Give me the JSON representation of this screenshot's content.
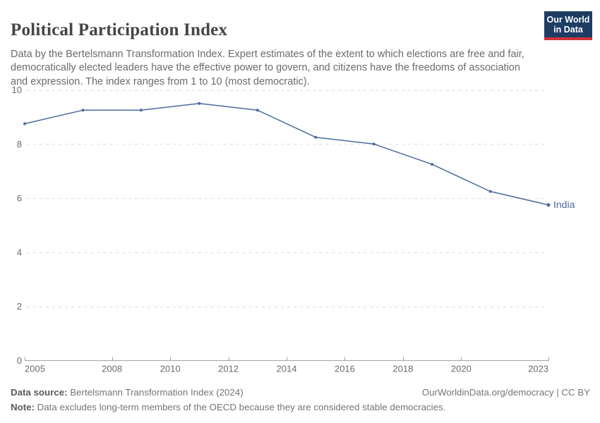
{
  "header": {
    "title": "Political Participation Index",
    "subtitle": "Data by the Bertelsmann Transformation Index. Expert estimates of the extent to which elections are free and fair, democratically elected leaders have the effective power to govern, and citizens have the freedoms of association and expression. The index ranges from 1 to 10 (most democratic).",
    "logo": {
      "line1": "Our World",
      "line2": "in Data"
    }
  },
  "chart_data": {
    "type": "line",
    "title": "Political Participation Index",
    "x": [
      2005,
      2007,
      2009,
      2011,
      2013,
      2015,
      2017,
      2019,
      2021,
      2023
    ],
    "series": [
      {
        "name": "India",
        "values": [
          8.75,
          9.25,
          9.25,
          9.5,
          9.25,
          8.25,
          8.0,
          7.25,
          6.25,
          5.75
        ],
        "color": "#4c6a9c"
      }
    ],
    "xlim": [
      2005,
      2023
    ],
    "ylim": [
      0,
      10
    ],
    "x_ticks": [
      2005,
      2008,
      2010,
      2012,
      2014,
      2016,
      2018,
      2020,
      2023
    ],
    "y_ticks": [
      0,
      2,
      4,
      6,
      8,
      10
    ],
    "grid": "horizontal-dashed",
    "legend": "end-of-line-label"
  },
  "footer": {
    "source_label": "Data source:",
    "source_value": " Bertelsmann Transformation Index (2024)",
    "attribution": "OurWorldinData.org/democracy | CC BY",
    "note_label": "Note:",
    "note_value": " Data excludes long-term members of the OECD because they are considered stable democracies."
  },
  "colors": {
    "line": "#4c6a9c",
    "gridline": "#dcdcdc",
    "axis": "#a3a3a3",
    "tick_label": "#6b6b6b",
    "title": "#454545",
    "subtitle": "#6b6b6b",
    "footer_text": "#757575",
    "logo_bg": "#1d3d63",
    "logo_accent": "#d13239"
  }
}
